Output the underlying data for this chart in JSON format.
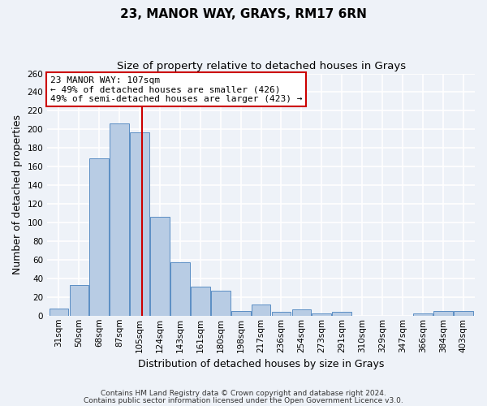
{
  "title": "23, MANOR WAY, GRAYS, RM17 6RN",
  "subtitle": "Size of property relative to detached houses in Grays",
  "xlabel": "Distribution of detached houses by size in Grays",
  "ylabel": "Number of detached properties",
  "categories": [
    "31sqm",
    "50sqm",
    "68sqm",
    "87sqm",
    "105sqm",
    "124sqm",
    "143sqm",
    "161sqm",
    "180sqm",
    "198sqm",
    "217sqm",
    "236sqm",
    "254sqm",
    "273sqm",
    "291sqm",
    "310sqm",
    "329sqm",
    "347sqm",
    "366sqm",
    "384sqm",
    "403sqm"
  ],
  "values": [
    8,
    33,
    169,
    206,
    197,
    106,
    57,
    31,
    27,
    5,
    12,
    4,
    7,
    2,
    4,
    0,
    0,
    0,
    2,
    5,
    5
  ],
  "bar_color": "#b8cce4",
  "bar_edge_color": "#5b8ec4",
  "vline_index": 4,
  "vline_color": "#cc0000",
  "annotation_title": "23 MANOR WAY: 107sqm",
  "annotation_line1": "← 49% of detached houses are smaller (426)",
  "annotation_line2": "49% of semi-detached houses are larger (423) →",
  "annotation_box_color": "#ffffff",
  "annotation_box_edge_color": "#cc0000",
  "ylim": [
    0,
    260
  ],
  "yticks": [
    0,
    20,
    40,
    60,
    80,
    100,
    120,
    140,
    160,
    180,
    200,
    220,
    240,
    260
  ],
  "footer1": "Contains HM Land Registry data © Crown copyright and database right 2024.",
  "footer2": "Contains public sector information licensed under the Open Government Licence v3.0.",
  "background_color": "#eef2f8",
  "plot_background": "#eef2f8",
  "grid_color": "#ffffff",
  "title_fontsize": 11,
  "subtitle_fontsize": 9.5,
  "label_fontsize": 9,
  "tick_fontsize": 7.5,
  "footer_fontsize": 6.5
}
